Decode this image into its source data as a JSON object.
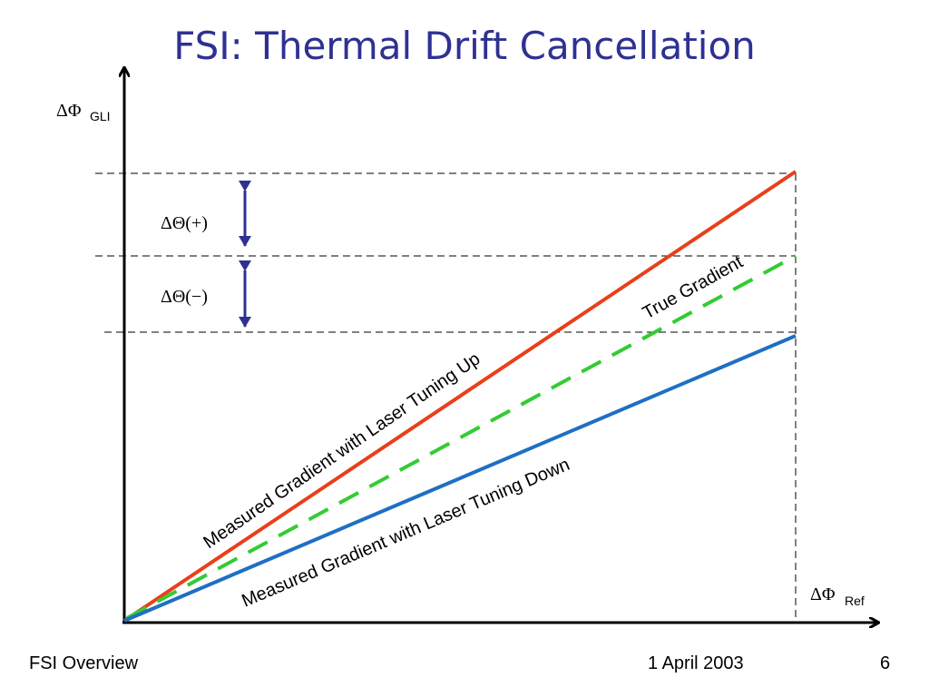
{
  "title": "FSI: Thermal Drift Cancellation",
  "footer": {
    "left": "FSI Overview",
    "date": "1 April 2003",
    "page": "6"
  },
  "axes": {
    "y_symbol": "ΔΦ",
    "y_subscript": "GLI",
    "x_symbol": "ΔΦ",
    "x_subscript": "Ref"
  },
  "annotations": {
    "delta_plus": "ΔΘ(+)",
    "delta_minus": "ΔΘ(−)"
  },
  "lines": {
    "tuning_up": {
      "label": "Measured Gradient with Laser Tuning Up",
      "color": "#e8401a"
    },
    "true_gradient": {
      "label": "True Gradient",
      "color": "#33cc33"
    },
    "tuning_down": {
      "label": "Measured Gradient with Laser Tuning Down",
      "color": "#1f6fc4"
    }
  },
  "colors": {
    "title": "#2e3192",
    "arrows": "#2e3192",
    "axes": "#000000"
  }
}
